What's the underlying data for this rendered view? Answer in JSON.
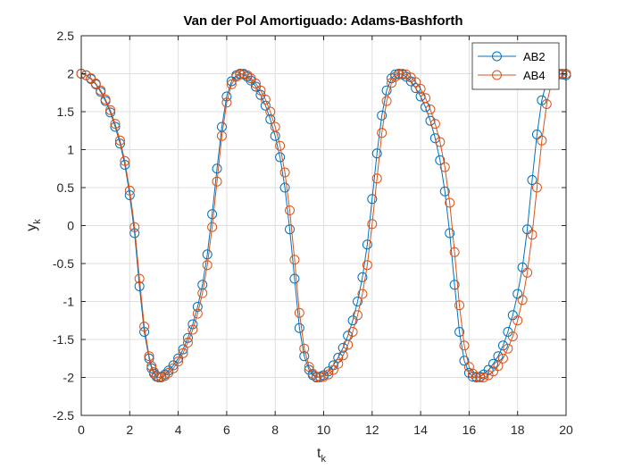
{
  "chart_data": {
    "type": "line",
    "title": "Van der Pol Amortiguado: Adams-Bashforth",
    "xlabel": {
      "base": "t",
      "sub": "k"
    },
    "ylabel": {
      "base": "y",
      "sub": "k"
    },
    "xlim": [
      0,
      20
    ],
    "ylim": [
      -2.5,
      2.5
    ],
    "x_ticks": [
      0,
      2,
      4,
      6,
      8,
      10,
      12,
      14,
      16,
      18,
      20
    ],
    "y_ticks": [
      -2.5,
      -2,
      -1.5,
      -1,
      -0.5,
      0,
      0.5,
      1,
      1.5,
      2,
      2.5
    ],
    "x_tick_labels": [
      "0",
      "2",
      "4",
      "6",
      "8",
      "10",
      "12",
      "14",
      "16",
      "18",
      "20"
    ],
    "y_tick_labels": [
      "-2.5",
      "-2",
      "-1.5",
      "-1",
      "-0.5",
      "0",
      "0.5",
      "1",
      "1.5",
      "2",
      "2.5"
    ],
    "grid": true,
    "legend_position": "top-right",
    "marker": "circle",
    "series": [
      {
        "name": "AB2",
        "color": "#0072BD",
        "x": [
          0.0,
          0.2,
          0.4,
          0.6,
          0.8,
          1.0,
          1.2,
          1.4,
          1.6,
          1.8,
          2.0,
          2.2,
          2.4,
          2.6,
          2.8,
          2.9,
          3.0,
          3.1,
          3.2,
          3.3,
          3.45,
          3.6,
          3.8,
          4.0,
          4.2,
          4.4,
          4.6,
          4.8,
          5.0,
          5.2,
          5.4,
          5.6,
          5.8,
          6.0,
          6.2,
          6.4,
          6.55,
          6.7,
          6.85,
          7.0,
          7.2,
          7.4,
          7.6,
          7.8,
          8.0,
          8.2,
          8.4,
          8.6,
          8.8,
          9.0,
          9.2,
          9.4,
          9.55,
          9.7,
          9.85,
          10.0,
          10.2,
          10.4,
          10.6,
          10.8,
          11.0,
          11.2,
          11.4,
          11.6,
          11.8,
          12.0,
          12.2,
          12.4,
          12.6,
          12.8,
          12.95,
          13.1,
          13.25,
          13.4,
          13.6,
          13.8,
          14.0,
          14.2,
          14.4,
          14.6,
          14.8,
          15.0,
          15.2,
          15.4,
          15.6,
          15.8,
          16.0,
          16.15,
          16.3,
          16.45,
          16.6,
          16.8,
          17.0,
          17.2,
          17.4,
          17.6,
          17.8,
          18.0,
          18.2,
          18.4,
          18.6,
          18.8,
          19.0,
          19.2,
          19.4,
          19.55,
          19.7,
          19.85,
          20.0
        ],
        "y": [
          2.0,
          1.98,
          1.93,
          1.86,
          1.76,
          1.64,
          1.49,
          1.3,
          1.08,
          0.8,
          0.4,
          -0.1,
          -0.8,
          -1.4,
          -1.75,
          -1.88,
          -1.95,
          -1.99,
          -2.0,
          -1.99,
          -1.96,
          -1.91,
          -1.84,
          -1.75,
          -1.63,
          -1.48,
          -1.3,
          -1.07,
          -0.78,
          -0.38,
          0.15,
          0.75,
          1.3,
          1.7,
          1.9,
          1.98,
          2.0,
          1.99,
          1.96,
          1.91,
          1.83,
          1.72,
          1.58,
          1.4,
          1.18,
          0.9,
          0.5,
          -0.05,
          -0.7,
          -1.35,
          -1.72,
          -1.9,
          -1.97,
          -2.0,
          -1.99,
          -1.97,
          -1.92,
          -1.84,
          -1.74,
          -1.61,
          -1.45,
          -1.25,
          -1.0,
          -0.68,
          -0.25,
          0.35,
          0.95,
          1.45,
          1.78,
          1.94,
          1.99,
          2.0,
          1.99,
          1.96,
          1.9,
          1.81,
          1.7,
          1.56,
          1.38,
          1.15,
          0.86,
          0.45,
          -0.1,
          -0.78,
          -1.4,
          -1.78,
          -1.94,
          -1.99,
          -2.0,
          -1.99,
          -1.96,
          -1.9,
          -1.82,
          -1.72,
          -1.58,
          -1.4,
          -1.18,
          -0.9,
          -0.55,
          -0.05,
          0.6,
          1.2,
          1.65,
          1.9,
          1.98,
          2.0,
          2.0,
          1.99,
          1.98
        ]
      },
      {
        "name": "AB4",
        "color": "#D95319",
        "x": [
          0.0,
          0.2,
          0.4,
          0.6,
          0.8,
          1.0,
          1.2,
          1.4,
          1.6,
          1.8,
          2.0,
          2.2,
          2.4,
          2.6,
          2.8,
          2.9,
          3.0,
          3.1,
          3.2,
          3.3,
          3.45,
          3.6,
          3.8,
          4.0,
          4.2,
          4.4,
          4.6,
          4.8,
          5.0,
          5.2,
          5.4,
          5.6,
          5.8,
          6.0,
          6.2,
          6.4,
          6.55,
          6.7,
          6.85,
          7.0,
          7.2,
          7.4,
          7.6,
          7.8,
          8.0,
          8.2,
          8.4,
          8.6,
          8.8,
          9.0,
          9.2,
          9.4,
          9.55,
          9.7,
          9.85,
          10.0,
          10.2,
          10.4,
          10.6,
          10.8,
          11.0,
          11.2,
          11.4,
          11.6,
          11.8,
          12.0,
          12.2,
          12.4,
          12.6,
          12.8,
          12.95,
          13.1,
          13.25,
          13.4,
          13.6,
          13.8,
          14.0,
          14.2,
          14.4,
          14.6,
          14.8,
          15.0,
          15.2,
          15.4,
          15.6,
          15.8,
          16.0,
          16.15,
          16.3,
          16.45,
          16.6,
          16.8,
          17.0,
          17.2,
          17.4,
          17.6,
          17.8,
          18.0,
          18.2,
          18.4,
          18.6,
          18.8,
          19.0,
          19.2,
          19.4,
          19.55,
          19.7,
          19.85,
          20.0
        ],
        "y": [
          2.0,
          1.98,
          1.94,
          1.87,
          1.78,
          1.66,
          1.52,
          1.34,
          1.12,
          0.85,
          0.46,
          -0.02,
          -0.7,
          -1.33,
          -1.72,
          -1.85,
          -1.93,
          -1.98,
          -2.0,
          -2.0,
          -1.98,
          -1.94,
          -1.88,
          -1.79,
          -1.68,
          -1.54,
          -1.37,
          -1.16,
          -0.89,
          -0.52,
          -0.02,
          0.58,
          1.18,
          1.62,
          1.86,
          1.96,
          1.99,
          2.0,
          1.98,
          1.94,
          1.87,
          1.78,
          1.66,
          1.5,
          1.3,
          1.05,
          0.7,
          0.2,
          -0.45,
          -1.15,
          -1.62,
          -1.86,
          -1.95,
          -1.99,
          -2.0,
          -1.99,
          -1.96,
          -1.9,
          -1.82,
          -1.71,
          -1.57,
          -1.4,
          -1.18,
          -0.9,
          -0.52,
          0.02,
          0.62,
          1.22,
          1.64,
          1.88,
          1.96,
          1.99,
          2.0,
          1.99,
          1.95,
          1.89,
          1.8,
          1.68,
          1.53,
          1.34,
          1.1,
          0.77,
          0.3,
          -0.35,
          -1.05,
          -1.58,
          -1.86,
          -1.95,
          -1.99,
          -2.0,
          -2.0,
          -1.97,
          -1.92,
          -1.85,
          -1.75,
          -1.62,
          -1.46,
          -1.25,
          -0.98,
          -0.62,
          -0.12,
          0.5,
          1.12,
          1.6,
          1.88,
          1.96,
          1.99,
          2.0,
          2.0
        ]
      }
    ]
  }
}
